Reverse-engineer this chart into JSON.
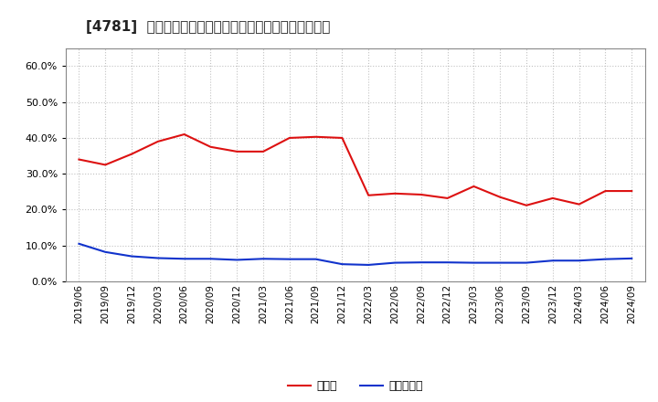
{
  "title": "[4781]  現預金、有利子負債の総資産に対する比率の推移",
  "x_labels": [
    "2019/06",
    "2019/09",
    "2019/12",
    "2020/03",
    "2020/06",
    "2020/09",
    "2020/12",
    "2021/03",
    "2021/06",
    "2021/09",
    "2021/12",
    "2022/03",
    "2022/06",
    "2022/09",
    "2022/12",
    "2023/03",
    "2023/06",
    "2023/09",
    "2023/12",
    "2024/03",
    "2024/06",
    "2024/09"
  ],
  "cash": [
    0.34,
    0.325,
    0.355,
    0.39,
    0.41,
    0.375,
    0.362,
    0.362,
    0.4,
    0.403,
    0.4,
    0.24,
    0.245,
    0.242,
    0.232,
    0.265,
    0.235,
    0.212,
    0.232,
    0.215,
    0.252,
    0.252
  ],
  "interest_debt": [
    0.105,
    0.082,
    0.07,
    0.065,
    0.063,
    0.063,
    0.06,
    0.063,
    0.062,
    0.062,
    0.048,
    0.046,
    0.052,
    0.053,
    0.053,
    0.052,
    0.052,
    0.052,
    0.058,
    0.058,
    0.062,
    0.064
  ],
  "cash_color": "#dd1111",
  "debt_color": "#1133cc",
  "ylim": [
    0.0,
    0.65
  ],
  "yticks": [
    0.0,
    0.1,
    0.2,
    0.3,
    0.4,
    0.5,
    0.6
  ],
  "legend_cash": "現預金",
  "legend_debt": "有利子負債",
  "bg_color": "#ffffff",
  "grid_color": "#bbbbbb",
  "title_color": "#222222",
  "title_fontsize": 11,
  "tick_fontsize": 8,
  "legend_fontsize": 9
}
